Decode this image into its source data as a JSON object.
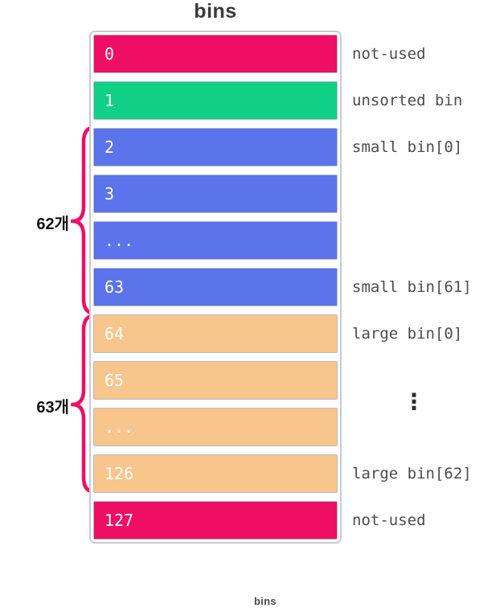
{
  "title": "bins",
  "caption": "bins",
  "colors": {
    "not_used": "#ee0e63",
    "unsorted": "#0fd085",
    "small": "#5b74ec",
    "large": "#f8c58c",
    "brace": "#ee0e63",
    "row_text": "#ffffff",
    "label_text": "#4d4d4d"
  },
  "rows": [
    {
      "index": "0",
      "type": "not_used",
      "label": "not-used"
    },
    {
      "index": "1",
      "type": "unsorted",
      "label": "unsorted bin"
    },
    {
      "index": "2",
      "type": "small",
      "label": "small bin[0]"
    },
    {
      "index": "3",
      "type": "small",
      "label": ""
    },
    {
      "index": "...",
      "type": "small",
      "label": ""
    },
    {
      "index": "63",
      "type": "small",
      "label": "small bin[61]"
    },
    {
      "index": "64",
      "type": "large",
      "label": "large bin[0]"
    },
    {
      "index": "65",
      "type": "large",
      "label": ""
    },
    {
      "index": "...",
      "type": "large",
      "label": ""
    },
    {
      "index": "126",
      "type": "large",
      "label": "large bin[62]"
    },
    {
      "index": "127",
      "type": "not_used",
      "label": "not-used"
    }
  ],
  "braces": [
    {
      "label": "62개",
      "rows": "2-63"
    },
    {
      "label": "63개",
      "rows": "64-126"
    }
  ],
  "ellipsis": "⋮"
}
